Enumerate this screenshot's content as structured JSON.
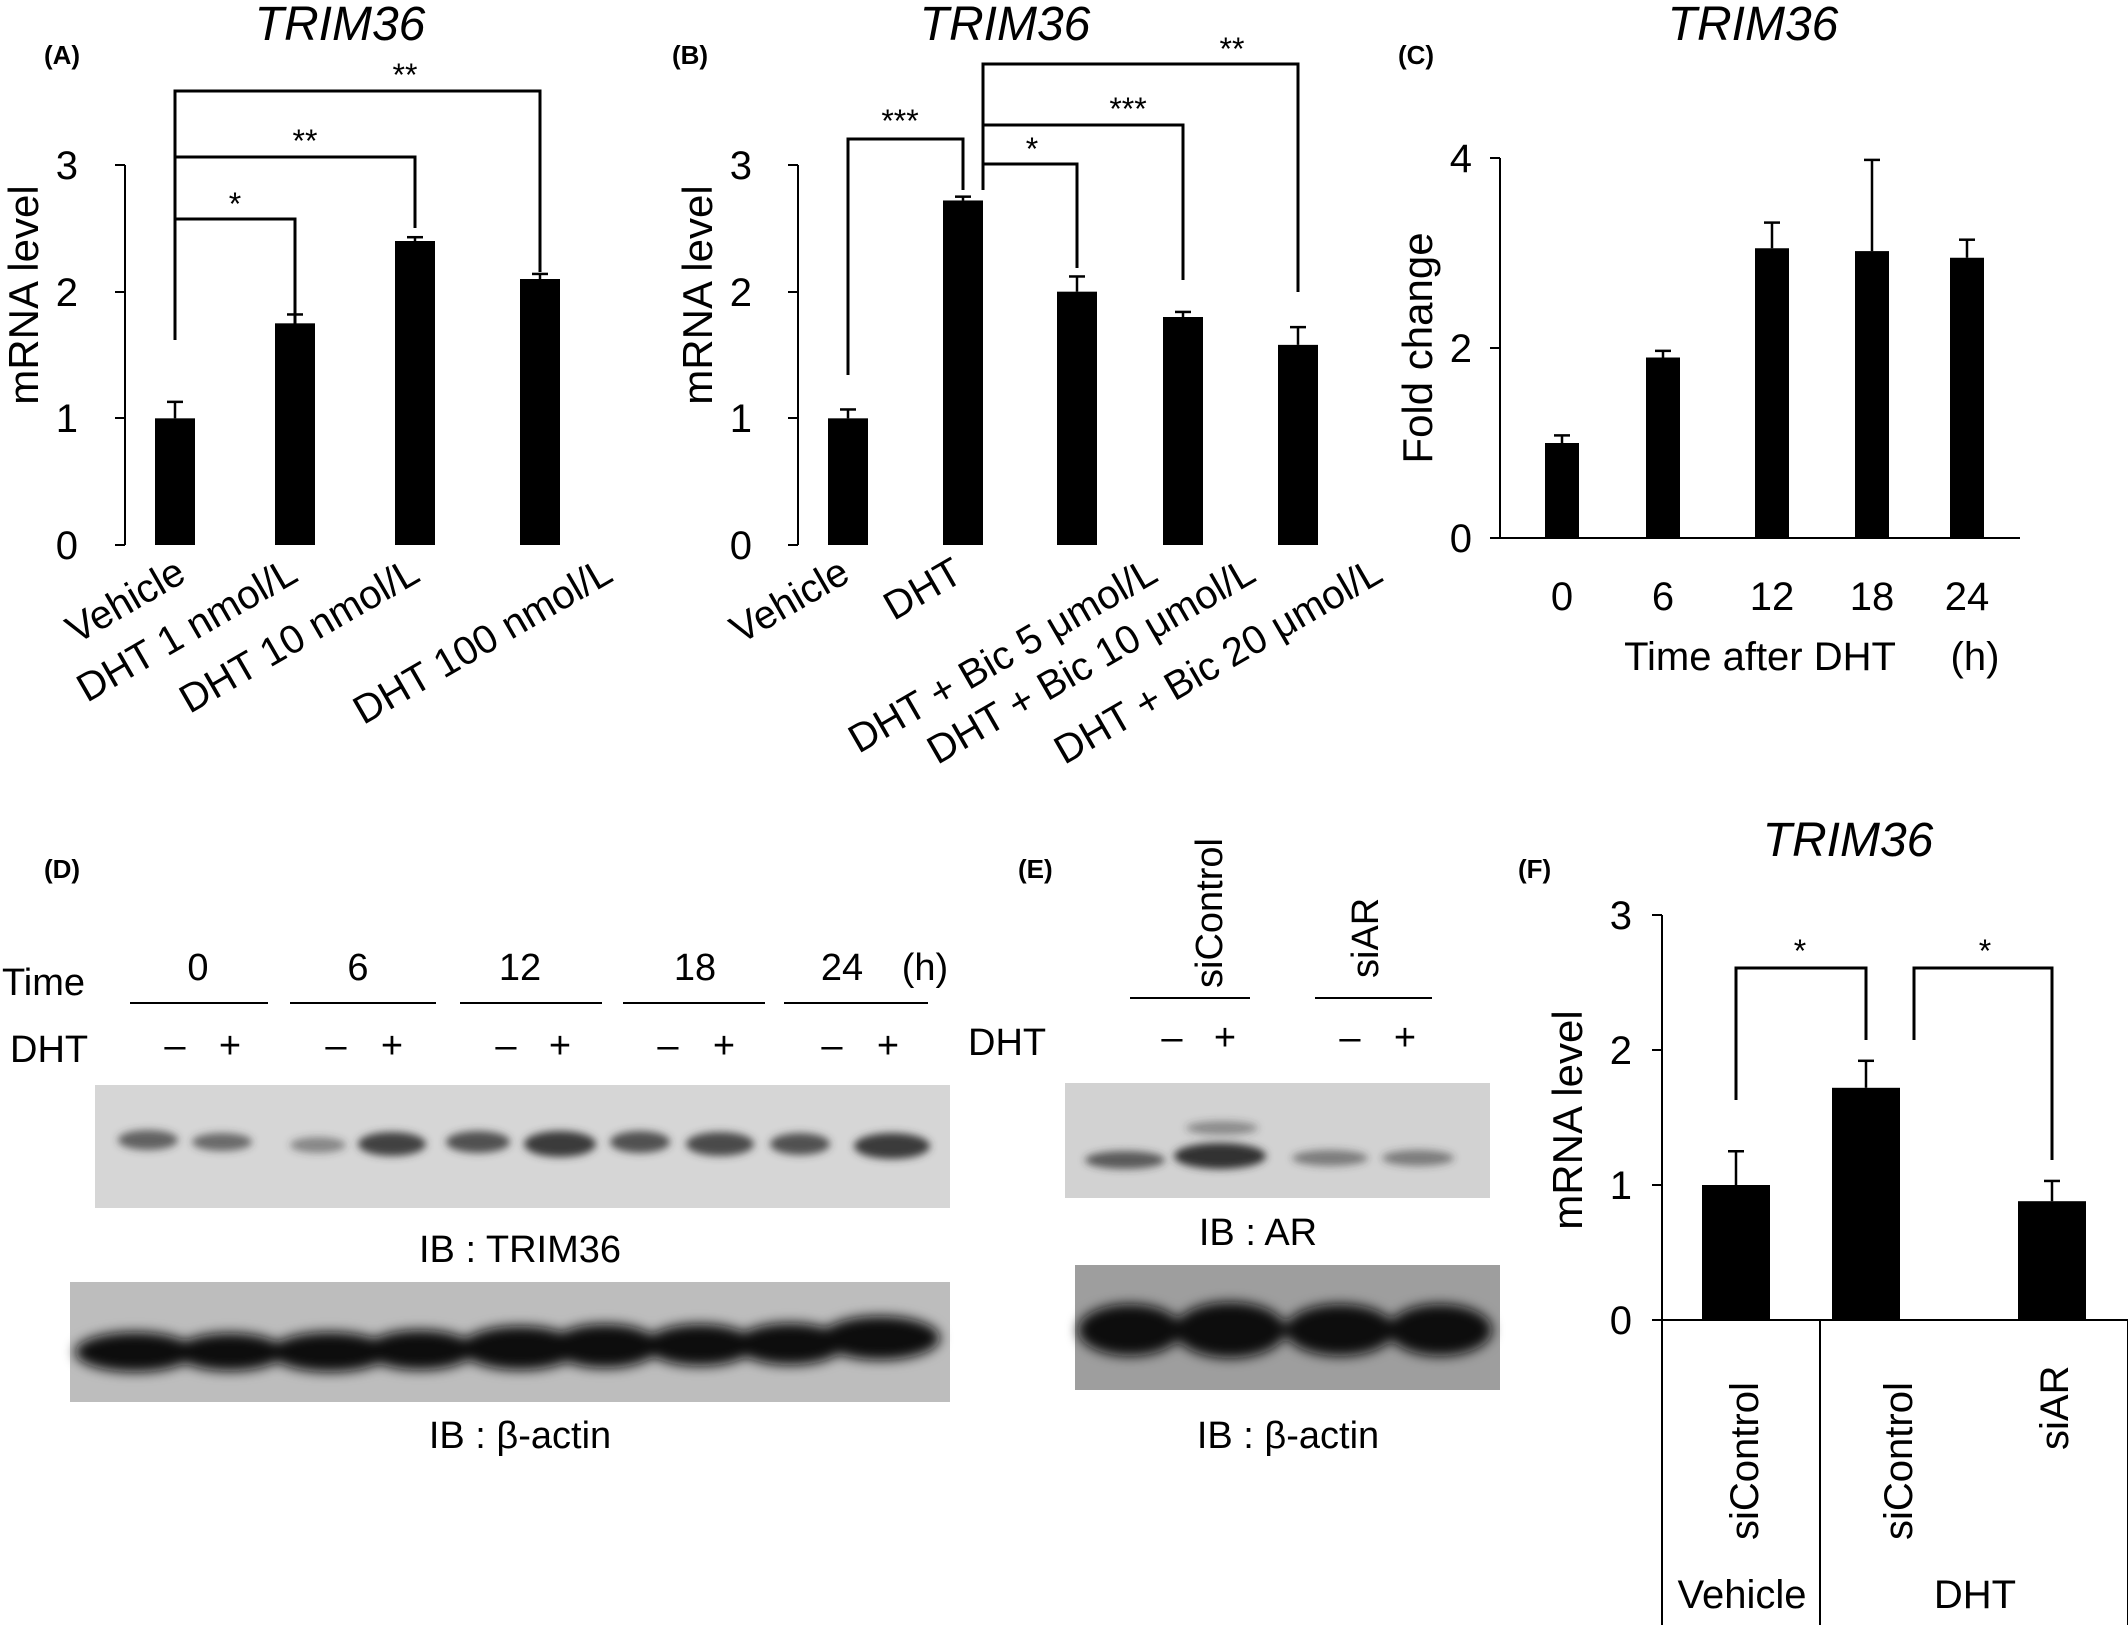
{
  "chart_data": [
    {
      "panel": "(A)",
      "type": "bar",
      "title": "TRIM36",
      "ylabel": "mRNA level",
      "xlabel": "",
      "ylim": [
        0,
        3
      ],
      "yticks": [
        "0",
        "1",
        "2",
        "3"
      ],
      "categories": [
        "Vehicle",
        "DHT 1 nmol/L",
        "DHT 10 nmol/L",
        "DHT 100 nmol/L"
      ],
      "values": [
        1.0,
        1.75,
        2.4,
        2.1
      ],
      "errors": [
        0.13,
        0.07,
        0.03,
        0.04
      ],
      "annotations": [
        {
          "from": "Vehicle",
          "to": "DHT 1 nmol/L",
          "label": "*"
        },
        {
          "from": "Vehicle",
          "to": "DHT 10 nmol/L",
          "label": "**"
        },
        {
          "from": "Vehicle",
          "to": "DHT 100 nmol/L",
          "label": "**"
        }
      ]
    },
    {
      "panel": "(B)",
      "type": "bar",
      "title": "TRIM36",
      "ylabel": "mRNA level",
      "xlabel": "",
      "ylim": [
        0,
        3
      ],
      "yticks": [
        "0",
        "1",
        "2",
        "3"
      ],
      "categories": [
        "Vehicle",
        "DHT",
        "DHT + Bic 5 μmol/L",
        "DHT + Bic 10 μmol/L",
        "DHT + Bic 20 μmol/L"
      ],
      "values": [
        1.0,
        2.72,
        2.0,
        1.8,
        1.58
      ],
      "errors": [
        0.07,
        0.03,
        0.12,
        0.04,
        0.14
      ],
      "annotations": [
        {
          "from": "Vehicle",
          "to": "DHT",
          "label": "***"
        },
        {
          "from": "DHT",
          "to": "DHT + Bic 5 μmol/L",
          "label": "*"
        },
        {
          "from": "DHT",
          "to": "DHT + Bic 10 μmol/L",
          "label": "***"
        },
        {
          "from": "DHT",
          "to": "DHT + Bic 20 μmol/L",
          "label": "**"
        }
      ]
    },
    {
      "panel": "(C)",
      "type": "bar",
      "title": "TRIM36",
      "ylabel": "Fold change",
      "xlabel": "Time after DHT",
      "xunit": "(h)",
      "ylim": [
        0,
        4
      ],
      "yticks": [
        "0",
        "2",
        "4"
      ],
      "categories": [
        "0",
        "6",
        "12",
        "18",
        "24"
      ],
      "values": [
        1.0,
        1.9,
        3.05,
        3.02,
        2.95
      ],
      "errors": [
        0.08,
        0.07,
        0.27,
        0.96,
        0.19
      ]
    },
    {
      "panel": "(F)",
      "type": "bar",
      "title": "TRIM36",
      "ylabel": "mRNA level",
      "xlabel": "",
      "ylim": [
        0,
        3
      ],
      "yticks": [
        "0",
        "1",
        "2",
        "3"
      ],
      "categories": [
        "siControl",
        "siControl",
        "siAR"
      ],
      "groups": [
        {
          "label": "Vehicle",
          "members": [
            0
          ]
        },
        {
          "label": "DHT",
          "members": [
            1,
            2
          ]
        }
      ],
      "values": [
        1.0,
        1.72,
        0.88
      ],
      "errors": [
        0.25,
        0.2,
        0.15
      ],
      "annotations": [
        {
          "from": 0,
          "to": 1,
          "label": "*"
        },
        {
          "from": 1,
          "to": 2,
          "label": "*"
        }
      ]
    }
  ],
  "western_D": {
    "panel": "(D)",
    "time_label": "Time",
    "unit": "(h)",
    "dht_label": "DHT",
    "timepoints": [
      "0",
      "6",
      "12",
      "18",
      "24"
    ],
    "minus": "–",
    "plus": "+",
    "blot1_label": "IB : TRIM36",
    "blot2_label": "IB : β-actin"
  },
  "western_E": {
    "panel": "(E)",
    "groups": [
      "siControl",
      "siAR"
    ],
    "dht_label": "DHT",
    "minus": "–",
    "plus": "+",
    "blot1_label": "IB : AR",
    "blot2_label": "IB : β-actin"
  }
}
